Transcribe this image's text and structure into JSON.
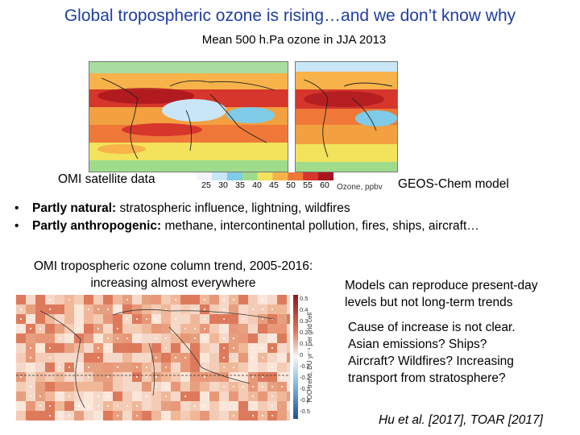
{
  "slide": {
    "title": "Global tropospheric ozone is rising…and we don’t know why",
    "subtitle": "Mean 500 h.Pa ozone in JJA 2013",
    "left_map_label": "OMI satellite data",
    "right_map_label": "GEOS-Chem model",
    "colorbar": {
      "ticks": [
        "25",
        "30",
        "35",
        "40",
        "45",
        "50",
        "55",
        "60"
      ],
      "unit": "Ozone, ppbv",
      "colors": [
        "#f4f4ff",
        "#c8e6f8",
        "#7fcbe8",
        "#9edc8c",
        "#f2e25c",
        "#f7b34a",
        "#ef7838",
        "#d6362b",
        "#a8151e"
      ]
    },
    "bullets": [
      {
        "bold": "Partly natural:",
        "rest": " stratospheric influence, lightning, wildfires"
      },
      {
        "bold": "Partly anthropogenic:",
        "rest": " methane, intercontinental pollution, fires, ships, aircraft…"
      }
    ],
    "bullet_glyph": "•",
    "trend_title_line1": "OMI tropospheric ozone column trend, 2005-2016:",
    "trend_title_line2": "increasing almost everywhere",
    "trend_scale": {
      "ticks": [
        "0.5",
        "0.4",
        "0.3",
        "0.2",
        "0.1",
        "0",
        "-0.1",
        "-0.2",
        "-0.3",
        "-0.4",
        "-0.5"
      ],
      "label": "TOO trend, DU yr⁻¹ per grid cell"
    },
    "models_text_1": "Models can reproduce present-day",
    "models_text_2": "levels but not long-term trends",
    "cause_lines": [
      "Cause of increase is not clear.",
      "Asian emissions? Ships?",
      "Aircraft? Wildfires? Increasing",
      "transport from stratosphere?"
    ],
    "citation": "Hu et al. [2017], TOAR [2017]"
  }
}
